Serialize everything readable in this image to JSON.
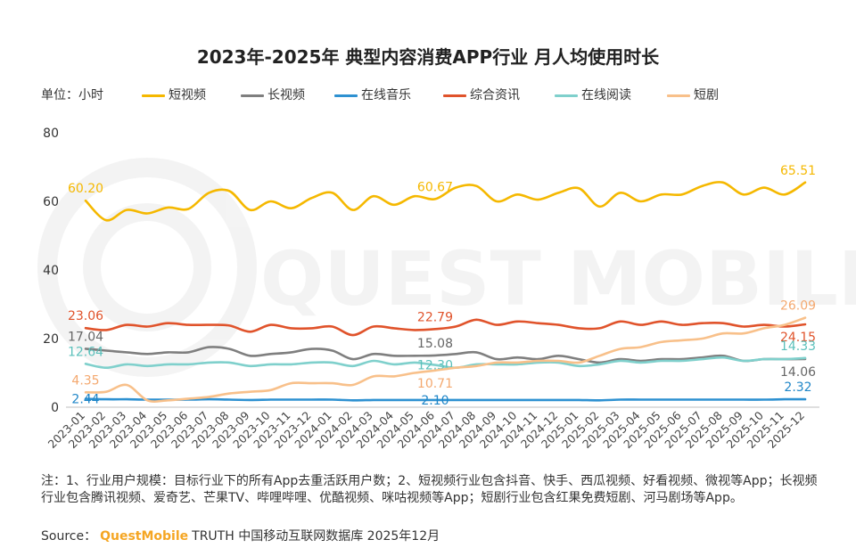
{
  "chart_data": {
    "type": "line",
    "title": "2023年-2025年 典型内容消费APP行业 月人均使用时长",
    "unit_label": "单位：小时",
    "ylim": [
      0,
      80
    ],
    "yticks": [
      "0",
      "20",
      "40",
      "60",
      "80"
    ],
    "grid": false,
    "legend_position": "top",
    "watermark": "QUEST MOBILE",
    "categories": [
      "2023-01",
      "2023-02",
      "2023-03",
      "2023-04",
      "2023-05",
      "2023-06",
      "2023-07",
      "2023-08",
      "2023-09",
      "2023-10",
      "2023-11",
      "2023-12",
      "2024-01",
      "2024-02",
      "2024-03",
      "2024-04",
      "2024-05",
      "2024-06",
      "2024-07",
      "2024-08",
      "2024-09",
      "2024-10",
      "2024-11",
      "2024-12",
      "2025-01",
      "2025-02",
      "2025-03",
      "2025-04",
      "2025-05",
      "2025-06",
      "2025-07",
      "2025-08",
      "2025-09",
      "2025-10",
      "2025-11",
      "2025-12"
    ],
    "series": [
      {
        "name": "短视频",
        "color": "#f5b800",
        "values": [
          60.2,
          54.5,
          57.5,
          56.5,
          58.2,
          57.8,
          62.5,
          63.0,
          57.5,
          60.0,
          58.0,
          61.0,
          62.5,
          57.5,
          61.5,
          59.0,
          61.5,
          60.67,
          64.0,
          64.5,
          60.0,
          62.0,
          60.5,
          62.5,
          63.8,
          58.5,
          62.5,
          60.0,
          62.0,
          62.0,
          64.5,
          65.5,
          62.0,
          64.0,
          62.0,
          65.51
        ],
        "labels": [
          {
            "i": 0,
            "text": "60.20",
            "pos": "above"
          },
          {
            "i": 17,
            "text": "60.67",
            "pos": "above"
          },
          {
            "i": 35,
            "text": "65.51",
            "pos": "above"
          }
        ]
      },
      {
        "name": "长视频",
        "color": "#7f7f7f",
        "values": [
          17.04,
          16.5,
          16.0,
          15.5,
          16.0,
          16.0,
          17.5,
          17.0,
          15.0,
          15.5,
          16.0,
          17.0,
          16.5,
          14.0,
          15.5,
          15.0,
          15.0,
          15.08,
          15.5,
          16.0,
          14.0,
          14.5,
          14.0,
          15.0,
          14.0,
          13.0,
          14.0,
          13.5,
          14.0,
          14.0,
          14.5,
          15.0,
          13.5,
          14.0,
          14.0,
          14.06
        ],
        "labels": [
          {
            "i": 0,
            "text": "17.04",
            "pos": "above"
          },
          {
            "i": 17,
            "text": "15.08",
            "pos": "above"
          },
          {
            "i": 35,
            "text": "14.06",
            "pos": "below"
          }
        ]
      },
      {
        "name": "在线音乐",
        "color": "#2e91d1",
        "values": [
          2.44,
          2.3,
          2.3,
          2.2,
          2.2,
          2.2,
          2.3,
          2.2,
          2.1,
          2.2,
          2.2,
          2.2,
          2.2,
          2.0,
          2.1,
          2.1,
          2.1,
          2.1,
          2.1,
          2.1,
          2.1,
          2.1,
          2.1,
          2.1,
          2.1,
          2.0,
          2.2,
          2.2,
          2.2,
          2.2,
          2.2,
          2.2,
          2.2,
          2.2,
          2.3,
          2.32
        ],
        "labels": [
          {
            "i": 0,
            "text": "2.44",
            "pos": "center"
          },
          {
            "i": 17,
            "text": "2.10",
            "pos": "center"
          },
          {
            "i": 35,
            "text": "2.32",
            "pos": "above"
          }
        ]
      },
      {
        "name": "综合资讯",
        "color": "#e0532b",
        "values": [
          23.06,
          22.5,
          24.0,
          23.5,
          24.5,
          24.0,
          24.0,
          23.8,
          22.0,
          24.0,
          23.0,
          23.0,
          23.5,
          21.0,
          23.5,
          23.0,
          22.5,
          22.79,
          23.5,
          25.5,
          24.0,
          25.0,
          24.5,
          24.0,
          23.0,
          23.0,
          25.0,
          24.0,
          25.0,
          24.0,
          24.5,
          24.5,
          23.5,
          24.0,
          23.5,
          24.15
        ],
        "labels": [
          {
            "i": 0,
            "text": "23.06",
            "pos": "above"
          },
          {
            "i": 17,
            "text": "22.79",
            "pos": "above"
          },
          {
            "i": 35,
            "text": "24.15",
            "pos": "below"
          }
        ]
      },
      {
        "name": "在线阅读",
        "color": "#7fd0cc",
        "values": [
          12.64,
          11.5,
          12.5,
          12.0,
          12.5,
          12.5,
          13.0,
          13.0,
          12.0,
          12.5,
          12.5,
          13.0,
          13.0,
          12.0,
          13.5,
          12.5,
          13.0,
          12.3,
          11.5,
          12.5,
          12.5,
          12.5,
          13.0,
          13.0,
          12.0,
          12.5,
          13.5,
          13.0,
          13.5,
          13.5,
          14.0,
          14.5,
          13.5,
          14.0,
          14.0,
          14.33
        ],
        "labels": [
          {
            "i": 0,
            "text": "12.64",
            "pos": "above"
          },
          {
            "i": 17,
            "text": "12.30",
            "pos": "center"
          },
          {
            "i": 35,
            "text": "14.33",
            "pos": "above"
          }
        ]
      },
      {
        "name": "短剧",
        "color": "#f8c08a",
        "values": [
          4.35,
          4.5,
          6.5,
          2.0,
          2.0,
          2.5,
          3.0,
          4.0,
          4.5,
          5.0,
          7.0,
          7.0,
          7.0,
          6.5,
          9.0,
          9.0,
          10.0,
          10.71,
          11.5,
          12.0,
          13.0,
          13.0,
          13.5,
          13.5,
          13.0,
          15.0,
          17.0,
          17.5,
          19.0,
          19.5,
          20.0,
          21.5,
          21.5,
          23.0,
          24.0,
          26.09
        ],
        "labels": [
          {
            "i": 0,
            "text": "4.35",
            "pos": "above"
          },
          {
            "i": 17,
            "text": "10.71",
            "pos": "below"
          },
          {
            "i": 35,
            "text": "26.09",
            "pos": "above"
          }
        ]
      }
    ]
  },
  "note": "注：1、行业用户规模：目标行业下的所有App去重活跃用户数；2、短视频行业包含抖音、快手、西瓜视频、好看视频、微视等App；长视频行业包含腾讯视频、爱奇艺、芒果TV、哔哩哔哩、优酷视频、咪咕视频等App；短剧行业包含红果免费短剧、河马剧场等App。",
  "source": {
    "label": "Source：",
    "brand": "QuestMobile",
    "text": "TRUTH 中国移动互联网数据库 2025年12月"
  }
}
